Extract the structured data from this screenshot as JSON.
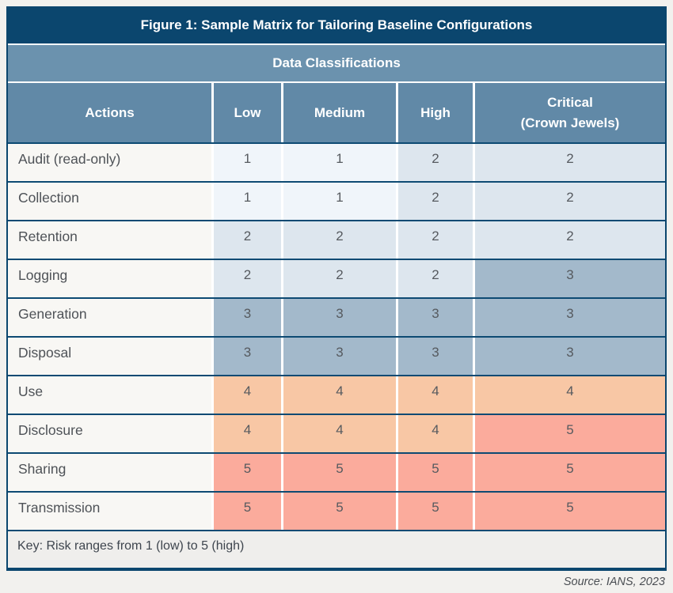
{
  "figure": {
    "title": "Figure 1: Sample Matrix for Tailoring Baseline Configurations",
    "subtitle": "Data Classifications",
    "key_note": "Key: Risk ranges from 1 (low) to 5 (high)",
    "source": "Source: IANS, 2023"
  },
  "colors": {
    "navy": "#0b466e",
    "subtitle_bar": "#6b92ae",
    "header_bar": "#6189a7",
    "page_bg": "#f2f1ee",
    "label_cell_bg": "#f8f7f4",
    "key_row_bg": "#efeeec"
  },
  "chart_data": {
    "type": "heatmap",
    "title": "Figure 1: Sample Matrix for Tailoring Baseline Configurations",
    "group_header": "Data Classifications",
    "columns": [
      "Actions",
      "Low",
      "Medium",
      "High",
      "Critical\n(Crown Jewels)"
    ],
    "rows": [
      {
        "action": "Audit (read-only)",
        "values": [
          1,
          1,
          2,
          2
        ]
      },
      {
        "action": "Collection",
        "values": [
          1,
          1,
          2,
          2
        ]
      },
      {
        "action": "Retention",
        "values": [
          2,
          2,
          2,
          2
        ]
      },
      {
        "action": "Logging",
        "values": [
          2,
          2,
          2,
          3
        ]
      },
      {
        "action": "Generation",
        "values": [
          3,
          3,
          3,
          3
        ]
      },
      {
        "action": "Disposal",
        "values": [
          3,
          3,
          3,
          3
        ]
      },
      {
        "action": "Use",
        "values": [
          4,
          4,
          4,
          4
        ]
      },
      {
        "action": "Disclosure",
        "values": [
          4,
          4,
          4,
          5
        ]
      },
      {
        "action": "Sharing",
        "values": [
          5,
          5,
          5,
          5
        ]
      },
      {
        "action": "Transmission",
        "values": [
          5,
          5,
          5,
          5
        ]
      }
    ],
    "value_scale": {
      "min": 1,
      "max": 5,
      "legend": "Key: Risk ranges from 1 (low) to 5 (high)"
    },
    "value_colors": {
      "1": "#f0f5fa",
      "2": "#dde6ee",
      "3": "#a3b9cb",
      "4": "#f8c7a5",
      "5": "#fbab9c"
    }
  }
}
